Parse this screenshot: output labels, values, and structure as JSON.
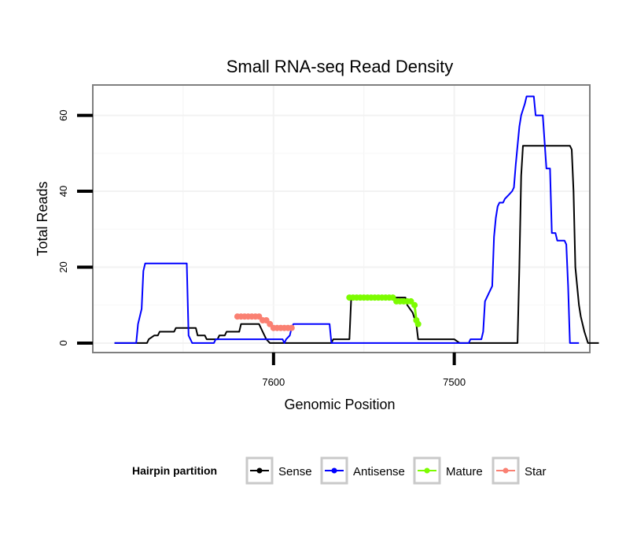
{
  "chart_data": {
    "type": "line",
    "title": "Small RNA-seq Read Density",
    "xlabel": "Genomic Position",
    "ylabel": "Total Reads",
    "x_reversed": true,
    "xlim": [
      7700,
      7425
    ],
    "ylim": [
      -2.5,
      68
    ],
    "x_ticks": [
      7600,
      7500
    ],
    "x_tick_labels": [
      "7600",
      "7500"
    ],
    "y_ticks": [
      0,
      20,
      40,
      60
    ],
    "y_tick_labels": [
      "0",
      "20",
      "40",
      "60"
    ],
    "grid": true,
    "legend": {
      "title": "Hairpin partition",
      "position": "bottom",
      "entries": [
        {
          "label": "Sense",
          "color": "#000000"
        },
        {
          "label": "Antisense",
          "color": "#0000ff"
        },
        {
          "label": "Mature",
          "color": "#7cfc00"
        },
        {
          "label": "Star",
          "color": "#fa8072"
        }
      ]
    },
    "series": [
      {
        "name": "Sense",
        "color": "#000000",
        "style": "line",
        "points": [
          [
            7688,
            0
          ],
          [
            7670,
            0
          ],
          [
            7669,
            1
          ],
          [
            7666,
            2
          ],
          [
            7664,
            2
          ],
          [
            7663,
            3
          ],
          [
            7655,
            3
          ],
          [
            7654,
            4
          ],
          [
            7643,
            4
          ],
          [
            7642,
            2
          ],
          [
            7638,
            2
          ],
          [
            7637,
            1
          ],
          [
            7631,
            1
          ],
          [
            7630,
            2
          ],
          [
            7627,
            2
          ],
          [
            7626,
            3
          ],
          [
            7619,
            3
          ],
          [
            7618,
            5
          ],
          [
            7608,
            5
          ],
          [
            7606,
            3
          ],
          [
            7604,
            1
          ],
          [
            7602,
            0
          ],
          [
            7590,
            0
          ],
          [
            7580,
            0
          ],
          [
            7568,
            0
          ],
          [
            7567,
            1
          ],
          [
            7558,
            1
          ],
          [
            7557,
            12
          ],
          [
            7527,
            12
          ],
          [
            7526,
            10
          ],
          [
            7523,
            8
          ],
          [
            7521,
            5
          ],
          [
            7520,
            1
          ],
          [
            7509,
            1
          ],
          [
            7500,
            1
          ],
          [
            7497,
            0
          ],
          [
            7465,
            0
          ],
          [
            7464,
            20
          ],
          [
            7463,
            44
          ],
          [
            7462,
            52
          ],
          [
            7436,
            52
          ],
          [
            7435,
            51
          ],
          [
            7434,
            40
          ],
          [
            7433,
            20
          ],
          [
            7431,
            10
          ],
          [
            7430,
            7
          ],
          [
            7428,
            3
          ],
          [
            7426,
            0
          ],
          [
            7420,
            0
          ]
        ]
      },
      {
        "name": "Antisense",
        "color": "#0000ff",
        "style": "line",
        "points": [
          [
            7688,
            0
          ],
          [
            7676,
            0
          ],
          [
            7675,
            5
          ],
          [
            7674,
            7
          ],
          [
            7673,
            9
          ],
          [
            7672,
            19
          ],
          [
            7671,
            21
          ],
          [
            7648,
            21
          ],
          [
            7647,
            2
          ],
          [
            7646,
            1
          ],
          [
            7645,
            0
          ],
          [
            7633,
            0
          ],
          [
            7632,
            1
          ],
          [
            7595,
            1
          ],
          [
            7594,
            0
          ],
          [
            7593,
            1
          ],
          [
            7591,
            2
          ],
          [
            7590,
            4
          ],
          [
            7589,
            5
          ],
          [
            7569,
            5
          ],
          [
            7568,
            0
          ],
          [
            7508,
            0
          ],
          [
            7500,
            0
          ],
          [
            7492,
            0
          ],
          [
            7491,
            1
          ],
          [
            7485,
            1
          ],
          [
            7484,
            3
          ],
          [
            7483,
            11
          ],
          [
            7481,
            13
          ],
          [
            7479,
            15
          ],
          [
            7478,
            28
          ],
          [
            7477,
            33
          ],
          [
            7476,
            36
          ],
          [
            7475,
            37
          ],
          [
            7473,
            37
          ],
          [
            7472,
            38
          ],
          [
            7470,
            39
          ],
          [
            7468,
            40
          ],
          [
            7467,
            41
          ],
          [
            7466,
            47
          ],
          [
            7464,
            57
          ],
          [
            7463,
            60
          ],
          [
            7461,
            63
          ],
          [
            7460,
            65
          ],
          [
            7456,
            65
          ],
          [
            7455,
            60
          ],
          [
            7451,
            60
          ],
          [
            7449,
            46
          ],
          [
            7447,
            46
          ],
          [
            7446,
            29
          ],
          [
            7444,
            29
          ],
          [
            7443,
            27
          ],
          [
            7439,
            27
          ],
          [
            7438,
            26
          ],
          [
            7437,
            15
          ],
          [
            7436,
            0
          ],
          [
            7431,
            0
          ]
        ]
      },
      {
        "name": "Mature",
        "color": "#7cfc00",
        "style": "points",
        "points": [
          [
            7558,
            12
          ],
          [
            7556,
            12
          ],
          [
            7554,
            12
          ],
          [
            7552,
            12
          ],
          [
            7550,
            12
          ],
          [
            7548,
            12
          ],
          [
            7546,
            12
          ],
          [
            7544,
            12
          ],
          [
            7542,
            12
          ],
          [
            7540,
            12
          ],
          [
            7538,
            12
          ],
          [
            7536,
            12
          ],
          [
            7534,
            12
          ],
          [
            7532,
            11
          ],
          [
            7530,
            11
          ],
          [
            7528,
            11
          ],
          [
            7526,
            11
          ],
          [
            7524,
            11
          ],
          [
            7522,
            10
          ],
          [
            7521,
            6
          ],
          [
            7520,
            5
          ]
        ]
      },
      {
        "name": "Star",
        "color": "#fa8072",
        "style": "points",
        "points": [
          [
            7620,
            7
          ],
          [
            7618,
            7
          ],
          [
            7616,
            7
          ],
          [
            7614,
            7
          ],
          [
            7612,
            7
          ],
          [
            7610,
            7
          ],
          [
            7608,
            7
          ],
          [
            7606,
            6
          ],
          [
            7604,
            6
          ],
          [
            7602,
            5
          ],
          [
            7600,
            4
          ],
          [
            7598,
            4
          ],
          [
            7596,
            4
          ],
          [
            7594,
            4
          ],
          [
            7592,
            4
          ],
          [
            7590,
            4
          ]
        ]
      }
    ]
  }
}
